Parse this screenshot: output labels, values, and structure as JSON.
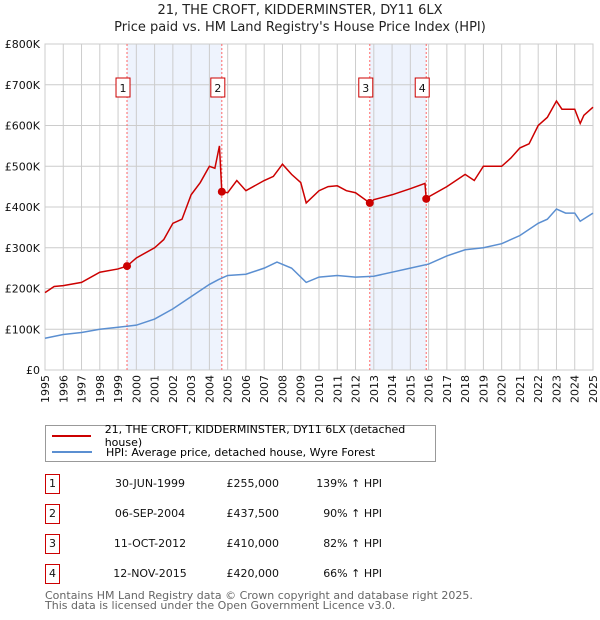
{
  "chart_data": {
    "type": "line",
    "title": "21, THE CROFT, KIDDERMINSTER, DY11 6LX",
    "subtitle": "Price paid vs. HM Land Registry's House Price Index (HPI)",
    "xlim": [
      1995,
      2025
    ],
    "ylim": [
      0,
      800000
    ],
    "y_ticks": [
      "£0",
      "£100K",
      "£200K",
      "£300K",
      "£400K",
      "£500K",
      "£600K",
      "£700K",
      "£800K"
    ],
    "y_tick_values": [
      0,
      100000,
      200000,
      300000,
      400000,
      500000,
      600000,
      700000,
      800000
    ],
    "x_ticks": [
      "1995",
      "1996",
      "1997",
      "1998",
      "1999",
      "2000",
      "2001",
      "2002",
      "2003",
      "2004",
      "2005",
      "2006",
      "2007",
      "2008",
      "2009",
      "2010",
      "2011",
      "2012",
      "2013",
      "2014",
      "2015",
      "2016",
      "2017",
      "2018",
      "2019",
      "2020",
      "2021",
      "2022",
      "2023",
      "2024",
      "2025"
    ],
    "grid": true,
    "colors": {
      "property": "#cc0000",
      "hpi": "#5b8fd1",
      "shade": "#eef3fd",
      "vline": "#ff6666"
    },
    "series": [
      {
        "name": "21, THE CROFT, KIDDERMINSTER, DY11 6LX (detached house)",
        "x": [
          1995,
          1995.5,
          1996,
          1997,
          1998,
          1999,
          1999.49,
          2000,
          2001,
          2001.5,
          2002,
          2002.5,
          2003,
          2003.5,
          2004,
          2004.3,
          2004.55,
          2004.68,
          2005,
          2005.5,
          2006,
          2007,
          2007.5,
          2008,
          2008.5,
          2009,
          2009.3,
          2010,
          2010.5,
          2011,
          2011.5,
          2012,
          2012.78,
          2013,
          2014,
          2015,
          2015.8,
          2015.87,
          2016,
          2017,
          2018,
          2018.5,
          2019,
          2020,
          2020.5,
          2021,
          2021.5,
          2022,
          2022.5,
          2023,
          2023.3,
          2024,
          2024.3,
          2024.5,
          2025
        ],
        "y": [
          190000,
          205000,
          207000,
          215000,
          240000,
          248000,
          255000,
          275000,
          300000,
          320000,
          360000,
          370000,
          430000,
          460000,
          500000,
          495000,
          550000,
          437500,
          435000,
          465000,
          440000,
          465000,
          475000,
          505000,
          480000,
          460000,
          410000,
          440000,
          450000,
          452000,
          440000,
          435000,
          410000,
          418000,
          430000,
          445000,
          458000,
          420000,
          425000,
          450000,
          480000,
          465000,
          500000,
          500000,
          520000,
          545000,
          555000,
          600000,
          620000,
          660000,
          640000,
          640000,
          605000,
          625000,
          645000
        ]
      },
      {
        "name": "HPI: Average price, detached house, Wyre Forest",
        "x": [
          1995,
          1996,
          1997,
          1998,
          1999,
          2000,
          2001,
          2002,
          2003,
          2004,
          2004.5,
          2005,
          2006,
          2007,
          2007.7,
          2008.5,
          2009.3,
          2010,
          2011,
          2012,
          2013,
          2014,
          2015,
          2016,
          2017,
          2018,
          2019,
          2020,
          2021,
          2022,
          2022.5,
          2023,
          2023.5,
          2024,
          2024.3,
          2025
        ],
        "y": [
          78000,
          87000,
          92000,
          100000,
          105000,
          110000,
          125000,
          150000,
          180000,
          210000,
          222000,
          232000,
          235000,
          250000,
          265000,
          250000,
          215000,
          228000,
          232000,
          228000,
          230000,
          240000,
          250000,
          260000,
          280000,
          295000,
          300000,
          310000,
          330000,
          360000,
          370000,
          395000,
          385000,
          385000,
          365000,
          385000
        ]
      }
    ],
    "transactions": [
      {
        "label": "1",
        "x": 1999.49,
        "date": "30-JUN-1999",
        "price": 255000,
        "price_text": "£255,000",
        "hpi": "139% ↑ HPI"
      },
      {
        "label": "2",
        "x": 2004.68,
        "date": "06-SEP-2004",
        "price": 437500,
        "price_text": "£437,500",
        "hpi": "90% ↑ HPI"
      },
      {
        "label": "3",
        "x": 2012.78,
        "date": "11-OCT-2012",
        "price": 410000,
        "price_text": "£410,000",
        "hpi": "82% ↑ HPI"
      },
      {
        "label": "4",
        "x": 2015.87,
        "date": "12-NOV-2015",
        "price": 420000,
        "price_text": "£420,000",
        "hpi": "66% ↑ HPI"
      }
    ],
    "shaded_ranges": [
      [
        1999.49,
        2004.68
      ],
      [
        2012.78,
        2015.87
      ]
    ],
    "legend_placement": "below"
  },
  "footer": {
    "line1": "Contains HM Land Registry data © Crown copyright and database right 2025.",
    "line2": "This data is licensed under the Open Government Licence v3.0."
  }
}
